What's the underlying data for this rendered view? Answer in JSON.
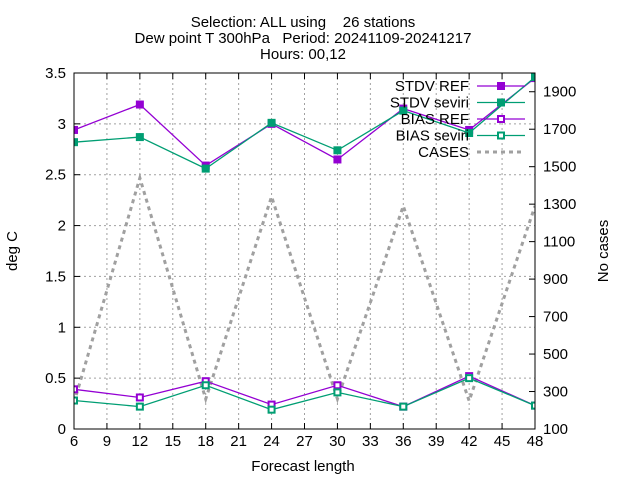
{
  "chart_data": {
    "type": "line",
    "title_lines": [
      "Selection: ALL using    26 stations",
      "Dew point T 300hPa   Period: 20241109-20241217",
      "Hours: 00,12"
    ],
    "xlabel": "Forecast length",
    "ylabel": "deg C",
    "y2label": "No cases",
    "x": [
      6,
      12,
      18,
      24,
      30,
      36,
      42,
      48
    ],
    "xticks": [
      6,
      9,
      12,
      15,
      18,
      21,
      24,
      27,
      30,
      33,
      36,
      39,
      42,
      45,
      48
    ],
    "xlim": [
      6,
      48
    ],
    "ylim": [
      0,
      3.5
    ],
    "yticks": [
      0,
      0.5,
      1,
      1.5,
      2,
      2.5,
      3,
      3.5
    ],
    "ytick_labels": [
      "0",
      "0.5",
      "1",
      "1.5",
      "2",
      "2.5",
      "3",
      "3.5"
    ],
    "y2lim": [
      100,
      2000
    ],
    "y2ticks": [
      100,
      300,
      500,
      700,
      900,
      1100,
      1300,
      1500,
      1700,
      1900
    ],
    "grid": true,
    "legend_position": "top-right",
    "series": [
      {
        "name": "STDV REF",
        "axis": "y1",
        "marker": "square-filled",
        "color": "#9400d3",
        "values": [
          2.94,
          3.19,
          2.59,
          3.0,
          2.65,
          3.15,
          2.94,
          3.45
        ]
      },
      {
        "name": "STDV seviri",
        "axis": "y1",
        "marker": "square-filled",
        "color": "#009e73",
        "values": [
          2.82,
          2.87,
          2.56,
          3.01,
          2.74,
          3.13,
          2.91,
          3.46
        ]
      },
      {
        "name": "BIAS REF",
        "axis": "y1",
        "marker": "square-open",
        "color": "#9400d3",
        "values": [
          0.39,
          0.31,
          0.47,
          0.24,
          0.43,
          0.22,
          0.52,
          0.23
        ]
      },
      {
        "name": "BIAS seviri",
        "axis": "y1",
        "marker": "square-open",
        "color": "#009e73",
        "values": [
          0.28,
          0.22,
          0.43,
          0.19,
          0.36,
          0.22,
          0.5,
          0.23
        ]
      },
      {
        "name": "CASES",
        "axis": "y2",
        "marker": "none",
        "color": "#a0a0a0",
        "dash": true,
        "values": [
          240,
          1440,
          260,
          1340,
          260,
          1290,
          250,
          1290
        ]
      }
    ]
  }
}
